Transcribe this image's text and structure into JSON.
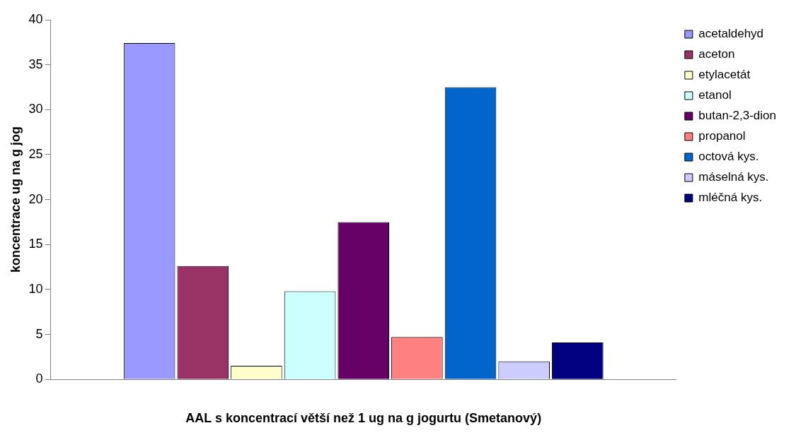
{
  "chart_data": {
    "type": "bar",
    "xlabel": "AAL s koncentrací větší než 1 ug na g jogurtu (Smetanový)",
    "ylabel": "koncentrace ug na g jog",
    "categories": [
      null
    ],
    "series": [
      {
        "name": "acetaldehyd",
        "color": "#9999ff",
        "values": [
          37.4
        ]
      },
      {
        "name": "aceton",
        "color": "#993366",
        "values": [
          12.6
        ]
      },
      {
        "name": "etylacetát",
        "color": "#ffffcc",
        "values": [
          1.5
        ]
      },
      {
        "name": "etanol",
        "color": "#ccffff",
        "values": [
          9.8
        ]
      },
      {
        "name": "butan-2,3-dion",
        "color": "#660066",
        "values": [
          17.5
        ]
      },
      {
        "name": "propanol",
        "color": "#ff8080",
        "values": [
          4.7
        ]
      },
      {
        "name": "octová kys.",
        "color": "#0066cc",
        "values": [
          32.5
        ]
      },
      {
        "name": "máselná kys.",
        "color": "#ccccff",
        "values": [
          2.0
        ]
      },
      {
        "name": "mléčná kys.",
        "color": "#000080",
        "values": [
          4.1
        ]
      }
    ],
    "ylim": [
      0,
      40
    ],
    "yticks": [
      0,
      5,
      10,
      15,
      20,
      25,
      30,
      35,
      40
    ],
    "grid": false,
    "legend": "top right"
  }
}
